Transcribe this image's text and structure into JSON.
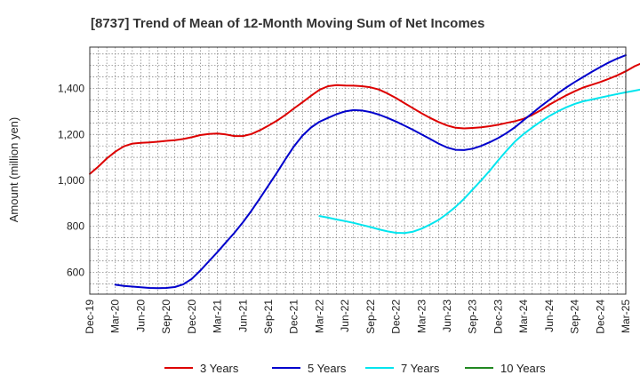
{
  "chart_data": {
    "type": "line",
    "title": "[8737]  Trend of Mean of 12-Month Moving Sum of Net Incomes",
    "xlabel": "",
    "ylabel": "Amount (million yen)",
    "ylim": [
      505,
      1580
    ],
    "yticks": [
      600,
      800,
      1000,
      1200,
      1400
    ],
    "ytick_labels": [
      "600",
      "800",
      "1,000",
      "1,200",
      "1,400"
    ],
    "xtick_labels": [
      "Dec-19",
      "Mar-20",
      "Jun-20",
      "Sep-20",
      "Dec-20",
      "Mar-21",
      "Jun-21",
      "Sep-21",
      "Dec-21",
      "Mar-22",
      "Jun-22",
      "Sep-22",
      "Dec-22",
      "Mar-23",
      "Jun-23",
      "Sep-23",
      "Dec-23",
      "Mar-24",
      "Jun-24",
      "Sep-24",
      "Dec-24",
      "Mar-25"
    ],
    "grid": true,
    "legend_position": "bottom",
    "series": [
      {
        "name": "3 Years",
        "color": "#dd0000",
        "start_month": 0,
        "values": [
          1028,
          1060,
          1095,
          1125,
          1148,
          1160,
          1163,
          1165,
          1168,
          1172,
          1175,
          1180,
          1188,
          1197,
          1202,
          1204,
          1200,
          1193,
          1193,
          1202,
          1218,
          1238,
          1260,
          1285,
          1313,
          1340,
          1368,
          1394,
          1410,
          1415,
          1413,
          1412,
          1410,
          1405,
          1395,
          1378,
          1358,
          1336,
          1314,
          1292,
          1272,
          1254,
          1239,
          1229,
          1226,
          1228,
          1231,
          1236,
          1242,
          1250,
          1258,
          1268,
          1285,
          1305,
          1329,
          1350,
          1370,
          1388,
          1404,
          1416,
          1428,
          1442,
          1457,
          1475,
          1496,
          1512
        ]
      },
      {
        "name": "5 Years",
        "color": "#0000cc",
        "start_month": 3,
        "values": [
          546,
          541,
          538,
          535,
          532,
          531,
          532,
          536,
          548,
          572,
          608,
          648,
          688,
          730,
          772,
          818,
          868,
          922,
          978,
          1034,
          1092,
          1148,
          1195,
          1230,
          1255,
          1272,
          1288,
          1300,
          1306,
          1304,
          1297,
          1286,
          1272,
          1256,
          1238,
          1220,
          1200,
          1180,
          1160,
          1143,
          1133,
          1132,
          1138,
          1150,
          1166,
          1184,
          1206,
          1232,
          1262,
          1292,
          1322,
          1350,
          1378,
          1404,
          1428,
          1450,
          1472,
          1493,
          1513,
          1530,
          1545
        ]
      },
      {
        "name": "7 Years",
        "color": "#00e5ee",
        "start_month": 27,
        "values": [
          845,
          838,
          830,
          823,
          815,
          806,
          797,
          787,
          778,
          772,
          771,
          777,
          790,
          808,
          828,
          855,
          885,
          920,
          960,
          1000,
          1042,
          1087,
          1130,
          1170,
          1202,
          1230,
          1256,
          1280,
          1300,
          1318,
          1333,
          1344,
          1352,
          1360,
          1368,
          1376,
          1383,
          1390,
          1397
        ]
      },
      {
        "name": "10 Years",
        "color": "#228822",
        "start_month": 0,
        "values": []
      }
    ]
  }
}
